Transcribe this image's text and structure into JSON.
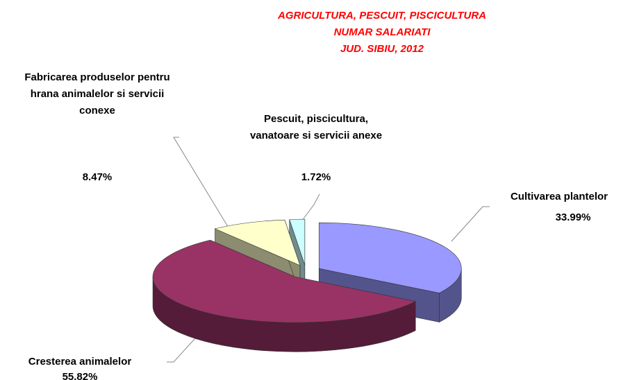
{
  "chart_data": {
    "type": "pie3d",
    "title": [
      "AGRICULTURA, PESCUIT, PISCICULTURA",
      "NUMAR SALARIATI",
      "JUD. SIBIU, 2012"
    ],
    "categories": [
      "Cultivarea plantelor",
      "Cresterea animalelor",
      "Fabricarea produselor pentru hrana animalelor si servicii conexe",
      "Pescuit, piscicultura, vanatoare si servicii anexe"
    ],
    "values": [
      33.99,
      55.82,
      8.47,
      1.72
    ],
    "value_labels": [
      "33.99%",
      "55.82%",
      "8.47%",
      "1.72%"
    ],
    "colors": [
      "#9999ff",
      "#993366",
      "#ffffcc",
      "#ccffff"
    ]
  }
}
